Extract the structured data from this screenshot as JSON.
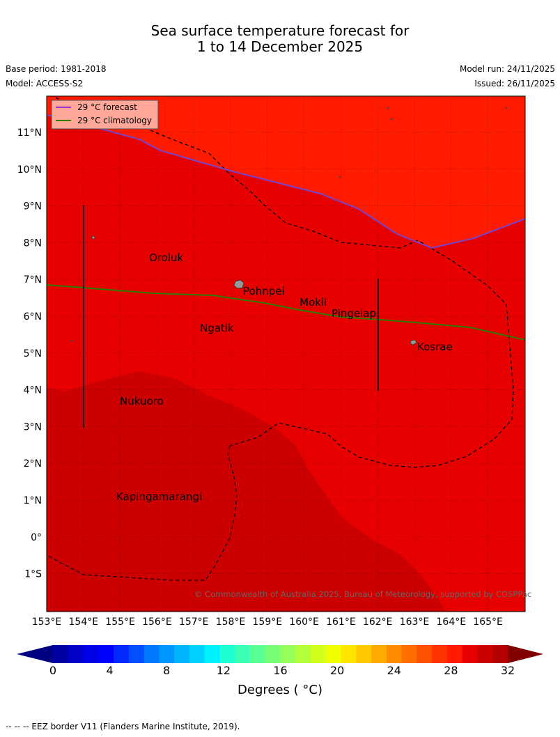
{
  "header": {
    "title_line1": "Sea surface temperature forecast for",
    "title_line2": "1 to 14 December 2025",
    "base_period": "Base period: 1981-2018",
    "model": "Model: ACCESS-S2",
    "model_run": "Model run: 24/11/2025",
    "issued": "Issued: 26/11/2025"
  },
  "map": {
    "lat_labels": [
      "11°N",
      "10°N",
      "9°N",
      "8°N",
      "7°N",
      "6°N",
      "5°N",
      "4°N",
      "3°N",
      "2°N",
      "1°N",
      "0°",
      "1°S"
    ],
    "lon_labels": [
      "153°E",
      "154°E",
      "155°E",
      "156°E",
      "157°E",
      "158°E",
      "159°E",
      "160°E",
      "161°E",
      "162°E",
      "163°E",
      "164°E",
      "165°E"
    ],
    "places": [
      "Oroluk",
      "Pohnpei",
      "Mokil",
      "Pingelap",
      "Ngatik",
      "Kosrae",
      "Nukuoro",
      "Kapingamarangi"
    ],
    "legend": [
      {
        "label": "29 °C  forecast",
        "color": "#9932cc"
      },
      {
        "label": "29 °C  climatology",
        "color": "#2e7d00"
      }
    ],
    "copyright": "© Commonwealth of Australia 2025, Bureau of Meteorology, supported by COSPPac",
    "fill_colors": {
      "above_30": "#ff1a00",
      "29_to_30": "#e60000",
      "28_to_29": "#cc0000"
    }
  },
  "colorbar": {
    "ticks": [
      "0",
      "4",
      "8",
      "12",
      "16",
      "20",
      "24",
      "28",
      "32"
    ],
    "label": "Degrees ( °C)",
    "colors": [
      "#0000a0",
      "#0000c8",
      "#0000e6",
      "#0000ff",
      "#0028ff",
      "#0050ff",
      "#0078ff",
      "#0096ff",
      "#00b4ff",
      "#00d2ff",
      "#00f0ff",
      "#1effd2",
      "#3cffb4",
      "#5aff96",
      "#78ff78",
      "#96ff5a",
      "#b4ff3c",
      "#d2ff1e",
      "#f0ff00",
      "#ffe600",
      "#ffc800",
      "#ffaa00",
      "#ff8c00",
      "#ff6e00",
      "#ff5000",
      "#ff3200",
      "#ff1a00",
      "#e60000",
      "#cc0000",
      "#b40000"
    ]
  },
  "footer": "--  --  -- EEZ border V11 (Flanders Marine Institute, 2019)."
}
